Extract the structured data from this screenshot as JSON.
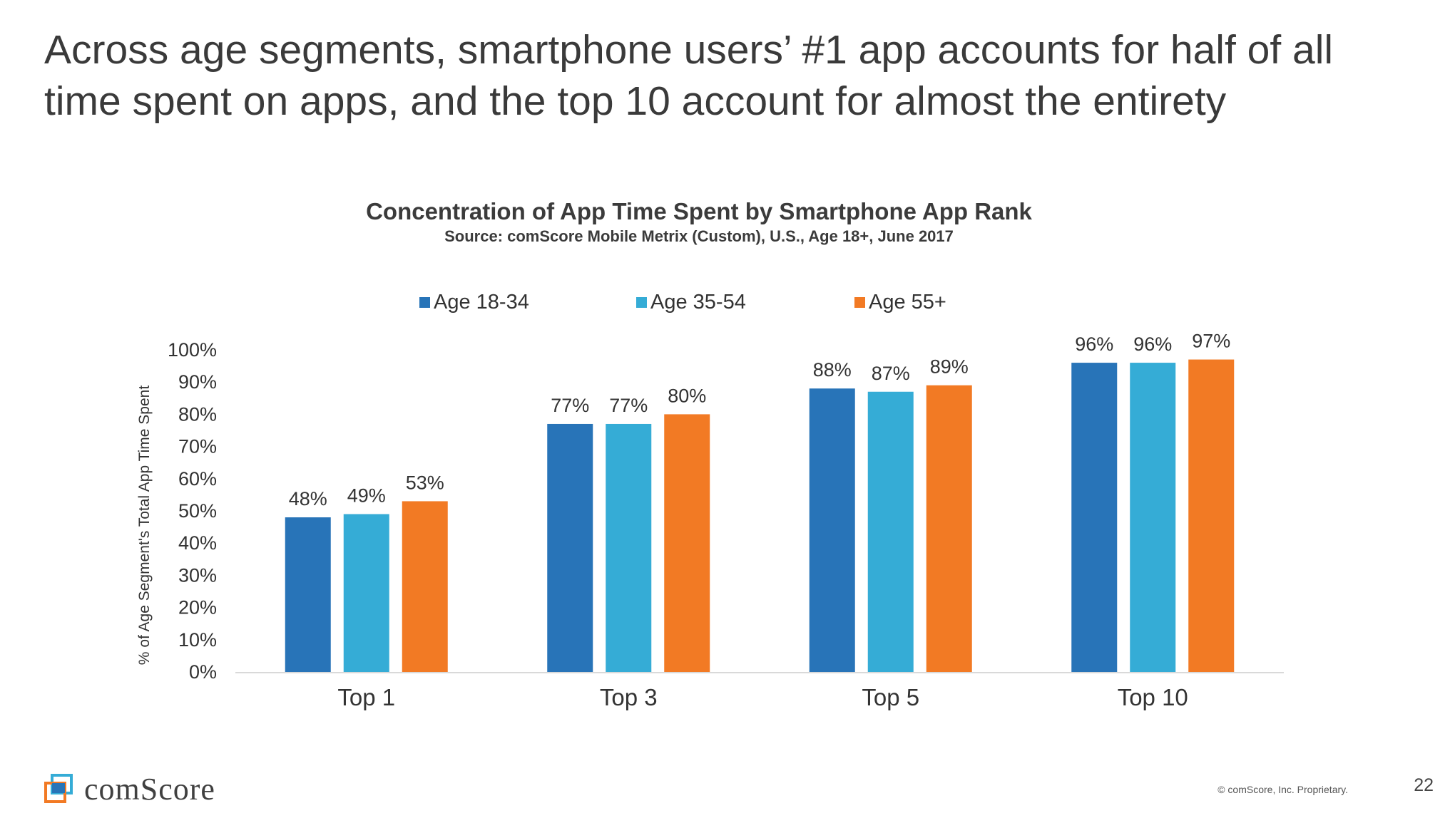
{
  "headline": "Across age segments, smartphone users’ #1 app accounts for half of all time spent on apps, and the top 10 account for almost the entirety",
  "chart_data": {
    "type": "bar",
    "title": "Concentration of App Time Spent by Smartphone App Rank",
    "subtitle": "Source: comScore Mobile Metrix (Custom), U.S., Age 18+, June 2017",
    "xlabel": "",
    "ylabel": "% of Age Segment's Total App Time Spent",
    "categories": [
      "Top 1",
      "Top 3",
      "Top 5",
      "Top 10"
    ],
    "series": [
      {
        "name": "Age 18-34",
        "color": "#2874b8",
        "values": [
          48,
          77,
          88,
          96
        ]
      },
      {
        "name": "Age 35-54",
        "color": "#35acd6",
        "values": [
          49,
          77,
          87,
          96
        ]
      },
      {
        "name": "Age 55+",
        "color": "#f27a24",
        "values": [
          53,
          80,
          89,
          97
        ]
      }
    ],
    "ylim": [
      0,
      100
    ],
    "yticks": [
      "0%",
      "10%",
      "20%",
      "30%",
      "40%",
      "50%",
      "60%",
      "70%",
      "80%",
      "90%",
      "100%"
    ],
    "data_labels": [
      [
        "48%",
        "77%",
        "88%",
        "96%"
      ],
      [
        "49%",
        "77%",
        "87%",
        "96%"
      ],
      [
        "53%",
        "80%",
        "89%",
        "97%"
      ]
    ],
    "legend_position": "top",
    "grid": false
  },
  "footer": {
    "logo_text": "comScore",
    "logo_icon": "comscore-logo-icon",
    "copyright": "© comScore, Inc. Proprietary.",
    "page_number": "22"
  }
}
